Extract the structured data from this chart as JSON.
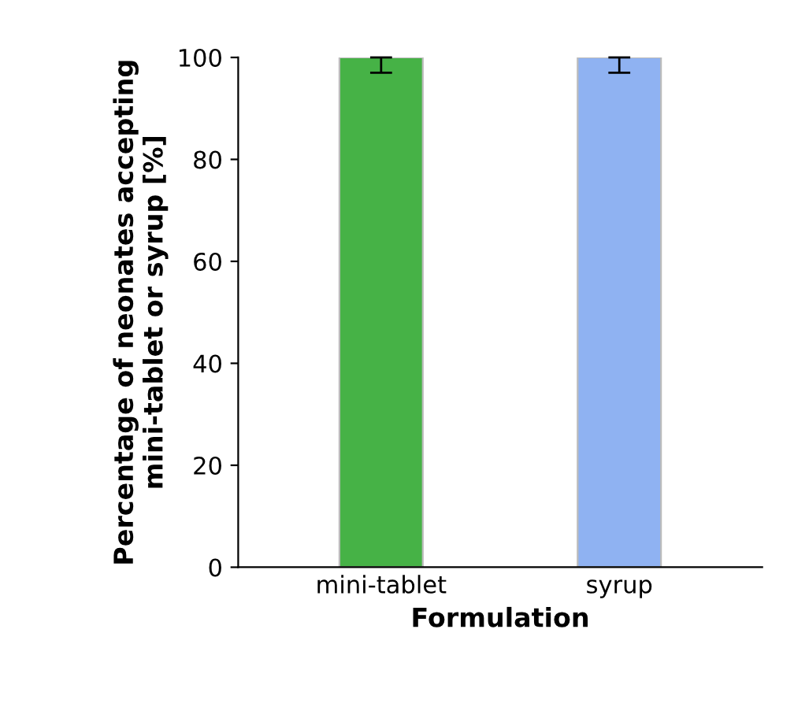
{
  "chart_data": {
    "type": "bar",
    "xlabel": "Formulation",
    "ylabel": "Percentage of neonates accepting\nmini-tablet or syrup [%]",
    "categories": [
      "mini-tablet",
      "syrup"
    ],
    "values": [
      100,
      100
    ],
    "colors": [
      "#46b246",
      "#8fb2f2"
    ],
    "errors": [
      [
        97,
        100
      ],
      [
        97,
        100
      ]
    ],
    "ylim": [
      0,
      100
    ],
    "yticks": [
      0,
      20,
      40,
      60,
      80,
      100
    ],
    "grid": false,
    "legend": false
  }
}
